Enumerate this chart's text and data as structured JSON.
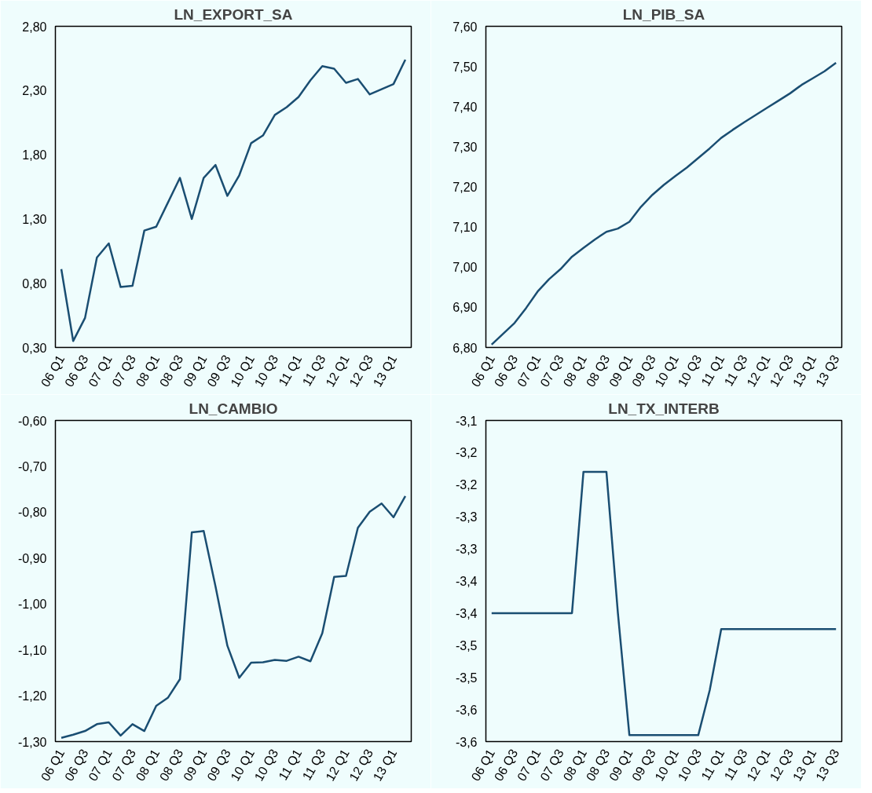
{
  "chart_data": [
    {
      "type": "line",
      "title": "LN_EXPORT_SA",
      "categories": [
        "06 Q1",
        null,
        "06 Q3",
        null,
        "07 Q1",
        null,
        "07 Q3",
        null,
        "08 Q1",
        null,
        "08 Q3",
        null,
        "09 Q1",
        null,
        "09 Q3",
        null,
        "10 Q1",
        null,
        "10 Q3",
        null,
        "11 Q1",
        null,
        "11 Q3",
        null,
        "12 Q1",
        null,
        "12 Q3",
        null,
        "13 Q1",
        null
      ],
      "series": [
        {
          "color": "#1a4e72",
          "values": [
            0.91,
            0.35,
            0.53,
            1.0,
            1.11,
            0.77,
            0.78,
            1.21,
            1.24,
            1.43,
            1.62,
            1.3,
            1.62,
            1.72,
            1.48,
            1.64,
            1.89,
            1.95,
            2.11,
            2.17,
            2.25,
            2.38,
            2.49,
            2.47,
            2.36,
            2.39,
            2.27,
            2.31,
            2.35,
            2.54
          ]
        }
      ],
      "ylim": [
        0.3,
        2.8
      ],
      "yticks": [
        {
          "value": 0.3,
          "label": "0,30"
        },
        {
          "value": 0.8,
          "label": "0,80"
        },
        {
          "value": 1.3,
          "label": "1,30"
        },
        {
          "value": 1.8,
          "label": "1,80"
        },
        {
          "value": 2.3,
          "label": "2,30"
        },
        {
          "value": 2.8,
          "label": "2,80"
        }
      ]
    },
    {
      "type": "line",
      "title": "LN_PIB_SA",
      "categories": [
        "06 Q1",
        null,
        "06 Q3",
        null,
        "07 Q1",
        null,
        "07 Q3",
        null,
        "08 Q1",
        null,
        "08 Q3",
        null,
        "09 Q1",
        null,
        "09 Q3",
        null,
        "10 Q1",
        null,
        "10 Q3",
        null,
        "11 Q1",
        null,
        "11 Q3",
        null,
        "12 Q1",
        null,
        "12 Q3",
        null,
        "13 Q1",
        null,
        "13 Q3"
      ],
      "series": [
        {
          "color": "#1a4e72",
          "values": [
            6.807,
            6.834,
            6.861,
            6.898,
            6.939,
            6.97,
            6.995,
            7.026,
            7.048,
            7.069,
            7.088,
            7.096,
            7.113,
            7.15,
            7.18,
            7.205,
            7.227,
            7.248,
            7.272,
            7.296,
            7.322,
            7.342,
            7.361,
            7.379,
            7.397,
            7.415,
            7.433,
            7.454,
            7.471,
            7.488,
            7.509
          ]
        }
      ],
      "ylim": [
        6.8,
        7.6
      ],
      "yticks": [
        {
          "value": 6.8,
          "label": "6,80"
        },
        {
          "value": 6.9,
          "label": "6,90"
        },
        {
          "value": 7.0,
          "label": "7,00"
        },
        {
          "value": 7.1,
          "label": "7,10"
        },
        {
          "value": 7.2,
          "label": "7,20"
        },
        {
          "value": 7.3,
          "label": "7,30"
        },
        {
          "value": 7.4,
          "label": "7,40"
        },
        {
          "value": 7.5,
          "label": "7,50"
        },
        {
          "value": 7.6,
          "label": "7,60"
        }
      ]
    },
    {
      "type": "line",
      "title": "LN_CAMBIO",
      "categories": [
        "06 Q1",
        null,
        "06 Q3",
        null,
        "07 Q1",
        null,
        "07 Q3",
        null,
        "08 Q1",
        null,
        "08 Q3",
        null,
        "09 Q1",
        null,
        "09 Q3",
        null,
        "10 Q1",
        null,
        "10 Q3",
        null,
        "11 Q1",
        null,
        "11 Q3",
        null,
        "12 Q1",
        null,
        "12 Q3",
        null,
        "13 Q1",
        null
      ],
      "series": [
        {
          "color": "#1a4e72",
          "values": [
            -1.292,
            -1.285,
            -1.277,
            -1.262,
            -1.258,
            -1.287,
            -1.262,
            -1.277,
            -1.222,
            -1.204,
            -1.164,
            -0.844,
            -0.841,
            -0.962,
            -1.091,
            -1.161,
            -1.128,
            -1.127,
            -1.122,
            -1.124,
            -1.115,
            -1.125,
            -1.064,
            -0.941,
            -0.939,
            -0.834,
            -0.799,
            -0.781,
            -0.811,
            -0.765
          ]
        }
      ],
      "ylim": [
        -1.3,
        -0.6
      ],
      "yticks": [
        {
          "value": -1.3,
          "label": "-1,30"
        },
        {
          "value": -1.2,
          "label": "-1,20"
        },
        {
          "value": -1.1,
          "label": "-1,10"
        },
        {
          "value": -1.0,
          "label": "-1,00"
        },
        {
          "value": -0.9,
          "label": "-0,90"
        },
        {
          "value": -0.8,
          "label": "-0,80"
        },
        {
          "value": -0.7,
          "label": "-0,70"
        },
        {
          "value": -0.6,
          "label": "-0,60"
        }
      ]
    },
    {
      "type": "line",
      "title": "LN_TX_INTERB",
      "categories": [
        "06 Q1",
        null,
        "06 Q3",
        null,
        "07 Q1",
        null,
        "07 Q3",
        null,
        "08 Q1",
        null,
        "08 Q3",
        null,
        "09 Q1",
        null,
        "09 Q3",
        null,
        "10 Q1",
        null,
        "10 Q3",
        null,
        "11 Q1",
        null,
        "11 Q3",
        null,
        "12 Q1",
        null,
        "12 Q3",
        null,
        "13 Q1",
        null,
        "13 Q3"
      ],
      "series": [
        {
          "color": "#1a4e72",
          "values": [
            -3.4,
            -3.4,
            -3.4,
            -3.4,
            -3.4,
            -3.4,
            -3.4,
            -3.4,
            -3.18,
            -3.18,
            -3.18,
            -3.4,
            -3.59,
            -3.59,
            -3.59,
            -3.59,
            -3.59,
            -3.59,
            -3.59,
            -3.52,
            -3.425,
            -3.425,
            -3.425,
            -3.425,
            -3.425,
            -3.425,
            -3.425,
            -3.425,
            -3.425,
            -3.425,
            -3.425
          ]
        }
      ],
      "ylim": [
        -3.6,
        -3.1
      ],
      "yticks": [
        {
          "value": -3.6,
          "label": "-3,6"
        },
        {
          "value": -3.55,
          "label": "-3,6"
        },
        {
          "value": -3.5,
          "label": "-3,5"
        },
        {
          "value": -3.45,
          "label": "-3,5"
        },
        {
          "value": -3.4,
          "label": "-3,4"
        },
        {
          "value": -3.35,
          "label": "-3,4"
        },
        {
          "value": -3.3,
          "label": "-3,3"
        },
        {
          "value": -3.25,
          "label": "-3,3"
        },
        {
          "value": -3.2,
          "label": "-3,2"
        },
        {
          "value": -3.15,
          "label": "-3,2"
        },
        {
          "value": -3.1,
          "label": "-3,1"
        }
      ]
    }
  ]
}
